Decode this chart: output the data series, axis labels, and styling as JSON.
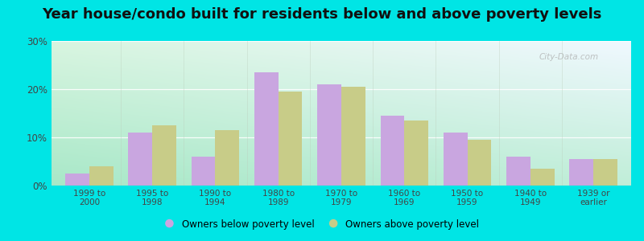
{
  "title": "Year house/condo built for residents below and above poverty levels",
  "categories": [
    "1999 to\n2000",
    "1995 to\n1998",
    "1990 to\n1994",
    "1980 to\n1989",
    "1970 to\n1979",
    "1960 to\n1969",
    "1950 to\n1959",
    "1940 to\n1949",
    "1939 or\nearlier"
  ],
  "below_poverty": [
    2.5,
    11.0,
    6.0,
    23.5,
    21.0,
    14.5,
    11.0,
    6.0,
    5.5
  ],
  "above_poverty": [
    4.0,
    12.5,
    11.5,
    19.5,
    20.5,
    13.5,
    9.5,
    3.5,
    5.5
  ],
  "below_color": "#c9a6e0",
  "above_color": "#c8cc88",
  "ylim": [
    0,
    30
  ],
  "yticks": [
    0,
    10,
    20,
    30
  ],
  "ytick_labels": [
    "0%",
    "10%",
    "20%",
    "30%"
  ],
  "outer_bg": "#00e5e5",
  "plot_bg_bottom": "#a8e8c8",
  "plot_bg_top": "#f0f8f0",
  "plot_bg_right": "#e8eef8",
  "title_fontsize": 13,
  "bar_width": 0.38,
  "legend_below_label": "Owners below poverty level",
  "legend_above_label": "Owners above poverty level",
  "grid_color": "#d0e8d0",
  "watermark": "City-Data.com"
}
